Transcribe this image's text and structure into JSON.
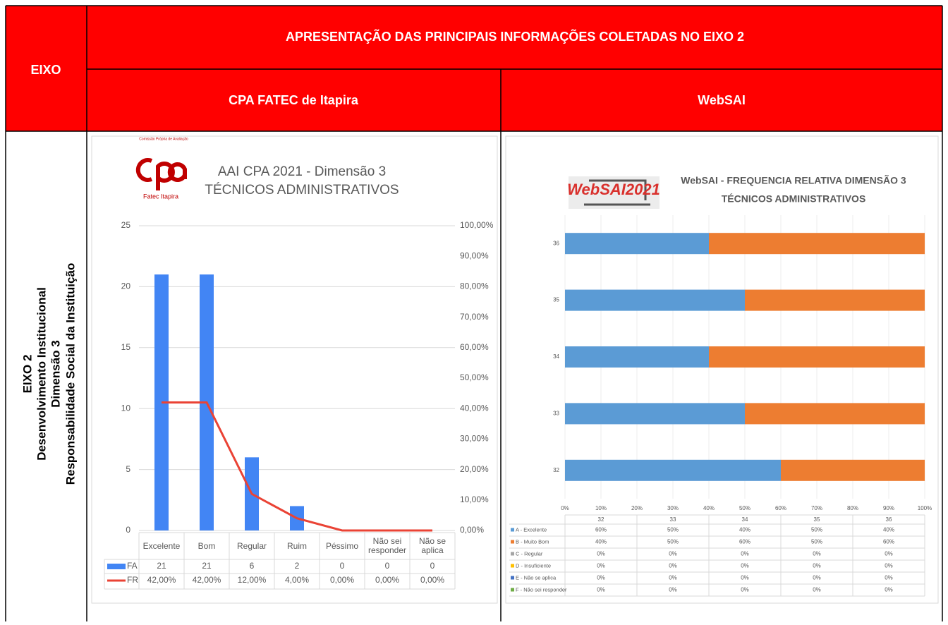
{
  "table": {
    "header": {
      "eixo": "EIXO",
      "title": "APRESENTAÇÃO DAS PRINCIPAIS INFORMAÇÕES COLETADAS NO EIXO 2",
      "col1": "CPA FATEC de Itapira",
      "col2": "WebSAI"
    },
    "row_label": [
      "EIXO 2",
      "Desenvolvimento Institucional",
      "Dimensão 3",
      "Responsabilidade Social da Instituição"
    ]
  },
  "chart_data": [
    {
      "type": "bar_line",
      "logo": [
        "Comissão Própria de Avaliação",
        "Fatec Itapira"
      ],
      "title": [
        "AAI CPA 2021 - Dimensão 3",
        "TÉCNICOS ADMINISTRATIVOS"
      ],
      "categories": [
        "Excelente",
        "Bom",
        "Regular",
        "Ruim",
        "Péssimo",
        "Não sei responder",
        "Não se aplica"
      ],
      "series": [
        {
          "name": "FA",
          "color": "#4285f4",
          "values": [
            21,
            21,
            6,
            2,
            0,
            0,
            0
          ]
        },
        {
          "name": "FR",
          "color": "#ea4335",
          "axis": "y2",
          "values": [
            42,
            42,
            12,
            4,
            0,
            0,
            0
          ],
          "value_labels": [
            "42,00%",
            "42,00%",
            "12,00%",
            "4,00%",
            "0,00%",
            "0,00%",
            "0,00%"
          ]
        }
      ],
      "ylim": [
        0,
        25
      ],
      "yticks": [
        0,
        5,
        10,
        15,
        20,
        25
      ],
      "y2lim": [
        0,
        100
      ],
      "y2ticks": [
        {
          "value": 0,
          "label": "0,00%"
        },
        {
          "value": 10,
          "label": "10,00%"
        },
        {
          "value": 20,
          "label": "20,00%"
        },
        {
          "value": 30,
          "label": "30,00%"
        },
        {
          "value": 40,
          "label": "40,00%"
        },
        {
          "value": 50,
          "label": "50,00%"
        },
        {
          "value": 60,
          "label": "60,00%"
        },
        {
          "value": 70,
          "label": "70,00%"
        },
        {
          "value": 80,
          "label": "80,00%"
        },
        {
          "value": 90,
          "label": "90,00%"
        },
        {
          "value": 100,
          "label": "100,00%"
        }
      ],
      "grid": true
    },
    {
      "type": "stacked_barh",
      "logo": "WebSAI2021",
      "title": [
        "WebSAI - FREQUENCIA RELATIVA DIMENSÃO 3",
        "TÉCNICOS ADMINISTRATIVOS"
      ],
      "categories": [
        "32",
        "33",
        "34",
        "35",
        "36"
      ],
      "series": [
        {
          "name": "A - Excelente",
          "color": "#5b9bd5",
          "values": [
            60,
            50,
            40,
            50,
            40
          ],
          "value_labels": [
            "60%",
            "50%",
            "40%",
            "50%",
            "40%"
          ]
        },
        {
          "name": "B - Muito Bom",
          "color": "#ed7d31",
          "values": [
            40,
            50,
            60,
            50,
            60
          ],
          "value_labels": [
            "40%",
            "50%",
            "60%",
            "50%",
            "60%"
          ]
        },
        {
          "name": "C - Regular",
          "color": "#a5a5a5",
          "values": [
            0,
            0,
            0,
            0,
            0
          ],
          "value_labels": [
            "0%",
            "0%",
            "0%",
            "0%",
            "0%"
          ]
        },
        {
          "name": "D - Insuficiente",
          "color": "#ffc000",
          "values": [
            0,
            0,
            0,
            0,
            0
          ],
          "value_labels": [
            "0%",
            "0%",
            "0%",
            "0%",
            "0%"
          ]
        },
        {
          "name": "E - Não se aplica",
          "color": "#4472c4",
          "values": [
            0,
            0,
            0,
            0,
            0
          ],
          "value_labels": [
            "0%",
            "0%",
            "0%",
            "0%",
            "0%"
          ]
        },
        {
          "name": "F - Não sei responder",
          "color": "#70ad47",
          "values": [
            0,
            0,
            0,
            0,
            0
          ],
          "value_labels": [
            "0%",
            "0%",
            "0%",
            "0%",
            "0%"
          ]
        }
      ],
      "xlim": [
        0,
        100
      ],
      "xticks": [
        {
          "value": 0,
          "label": "0%"
        },
        {
          "value": 10,
          "label": "10%"
        },
        {
          "value": 20,
          "label": "20%"
        },
        {
          "value": 30,
          "label": "30%"
        },
        {
          "value": 40,
          "label": "40%"
        },
        {
          "value": 50,
          "label": "50%"
        },
        {
          "value": 60,
          "label": "60%"
        },
        {
          "value": 70,
          "label": "70%"
        },
        {
          "value": 80,
          "label": "80%"
        },
        {
          "value": 90,
          "label": "90%"
        },
        {
          "value": 100,
          "label": "100%"
        }
      ],
      "grid": true
    }
  ]
}
